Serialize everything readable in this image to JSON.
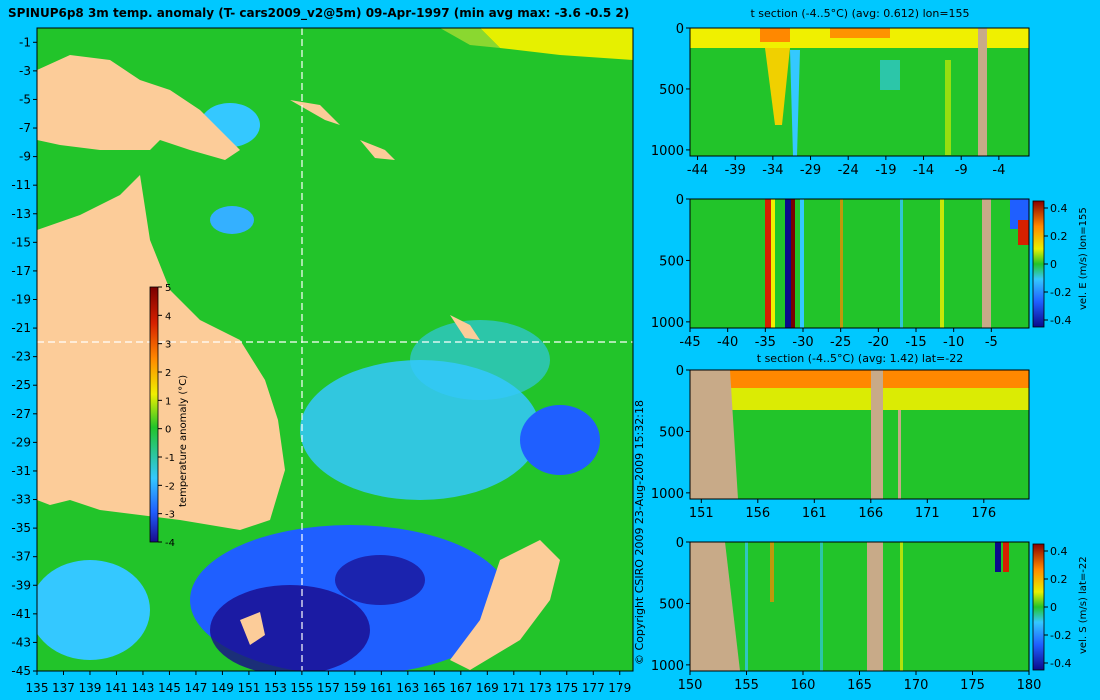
{
  "colors": {
    "background": "#00c8ff",
    "land": "#fccc99",
    "mask": "#c8aa88",
    "ocean_base": "#22c42a",
    "scale": [
      "#1a0a8c",
      "#1f5fff",
      "#34c8ff",
      "#22c42a",
      "#f0f000",
      "#ff8800",
      "#d62000",
      "#7a0000"
    ]
  },
  "main_map": {
    "title": "SPINUP6p8 3m temp. anomaly (T- cars2009_v2@5m) 09-Apr-1997 (min avg max: -3.6 -0.5 2)",
    "colorbar_label": "temperature anomaly (°C)",
    "colorbar_ticks": [
      "5",
      "4",
      "3",
      "2",
      "1",
      "0",
      "-1",
      "-2",
      "-3",
      "-4"
    ],
    "copyright": "© Copyright CSIRO 2009   23-Aug-2009 15:32:18"
  },
  "chart_data": [
    {
      "type": "heatmap",
      "title": "SPINUP6p8 3m temp. anomaly (T- cars2009_v2@5m) 09-Apr-1997 (min avg max: -3.6 -0.5 2)",
      "xlabel": "",
      "ylabel": "",
      "xlim": [
        135,
        180
      ],
      "ylim": [
        -45,
        0
      ],
      "x_ticks": [
        "135",
        "137",
        "139",
        "141",
        "143",
        "145",
        "147",
        "149",
        "151",
        "153",
        "155",
        "157",
        "159",
        "161",
        "163",
        "165",
        "167",
        "169",
        "171",
        "173",
        "175",
        "177",
        "179"
      ],
      "y_ticks": [
        "-1",
        "-3",
        "-5",
        "-7",
        "-9",
        "-11",
        "-13",
        "-15",
        "-17",
        "-19",
        "-21",
        "-23",
        "-25",
        "-27",
        "-29",
        "-31",
        "-33",
        "-35",
        "-37",
        "-39",
        "-41",
        "-43",
        "-45"
      ],
      "colorbar": {
        "label": "temperature anomaly (°C)",
        "range": [
          -4,
          5
        ]
      },
      "sections_marked": {
        "lon": 155,
        "lat": -22
      },
      "stats": {
        "min": -3.6,
        "avg": -0.5,
        "max": 2
      }
    },
    {
      "type": "heatmap",
      "title": "t section (-4..5°C) (avg: 0.612) lon=155",
      "xlabel": "",
      "ylabel": "",
      "xlim": [
        -45,
        0
      ],
      "ylim": [
        1050,
        0
      ],
      "x_ticks": [
        "-44",
        "-39",
        "-34",
        "-29",
        "-24",
        "-19",
        "-14",
        "-9",
        "-4"
      ],
      "y_ticks": [
        "0",
        "500",
        "1000"
      ],
      "avg": 0.612
    },
    {
      "type": "heatmap",
      "title": "",
      "xlabel": "",
      "ylabel": "",
      "xlim": [
        -45,
        0
      ],
      "ylim": [
        1050,
        0
      ],
      "x_ticks": [
        "-45",
        "-40",
        "-35",
        "-30",
        "-25",
        "-20",
        "-15",
        "-10",
        "-5"
      ],
      "y_ticks": [
        "0",
        "500",
        "1000"
      ],
      "colorbar": {
        "label": "vel. E (m/s) lon=155",
        "ticks": [
          "0.4",
          "0.2",
          "0",
          "-0.2",
          "-0.4"
        ],
        "range": [
          -0.45,
          0.45
        ]
      }
    },
    {
      "type": "heatmap",
      "title": "t section (-4..5°C) (avg: 1.42) lat=-22",
      "xlabel": "",
      "ylabel": "",
      "xlim": [
        150,
        180
      ],
      "ylim": [
        1050,
        0
      ],
      "x_ticks": [
        "151",
        "156",
        "161",
        "166",
        "171",
        "176"
      ],
      "y_ticks": [
        "0",
        "500",
        "1000"
      ],
      "avg": 1.42
    },
    {
      "type": "heatmap",
      "title": "",
      "xlabel": "",
      "ylabel": "",
      "xlim": [
        150,
        180
      ],
      "ylim": [
        1050,
        0
      ],
      "x_ticks": [
        "150",
        "155",
        "160",
        "165",
        "170",
        "175",
        "180"
      ],
      "y_ticks": [
        "0",
        "500",
        "1000"
      ],
      "colorbar": {
        "label": "vel. S (m/s) lat=-22",
        "ticks": [
          "0.4",
          "0.2",
          "0",
          "-0.2",
          "-0.4"
        ],
        "range": [
          -0.45,
          0.45
        ]
      }
    }
  ]
}
